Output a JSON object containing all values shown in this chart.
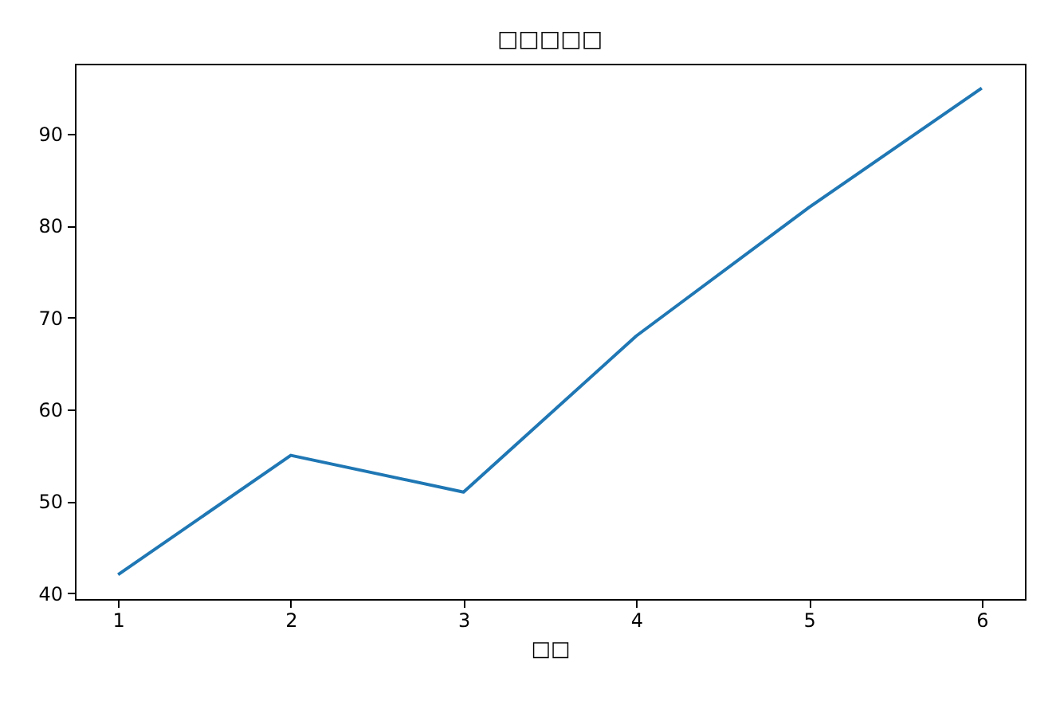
{
  "chart_data": {
    "type": "line",
    "title": "□□□□□",
    "xlabel": "□□",
    "x": [
      1,
      2,
      3,
      4,
      5,
      6
    ],
    "series": [
      {
        "color": "#1f77b4",
        "values": [
          42,
          55,
          51,
          68,
          82,
          95
        ]
      }
    ],
    "xlim": [
      0.75,
      6.25
    ],
    "xticks": [
      1,
      2,
      3,
      4,
      5,
      6
    ],
    "ylim": [
      39.35,
      97.65
    ],
    "yticks": [
      40,
      50,
      60,
      70,
      80,
      90
    ],
    "grid": false
  }
}
